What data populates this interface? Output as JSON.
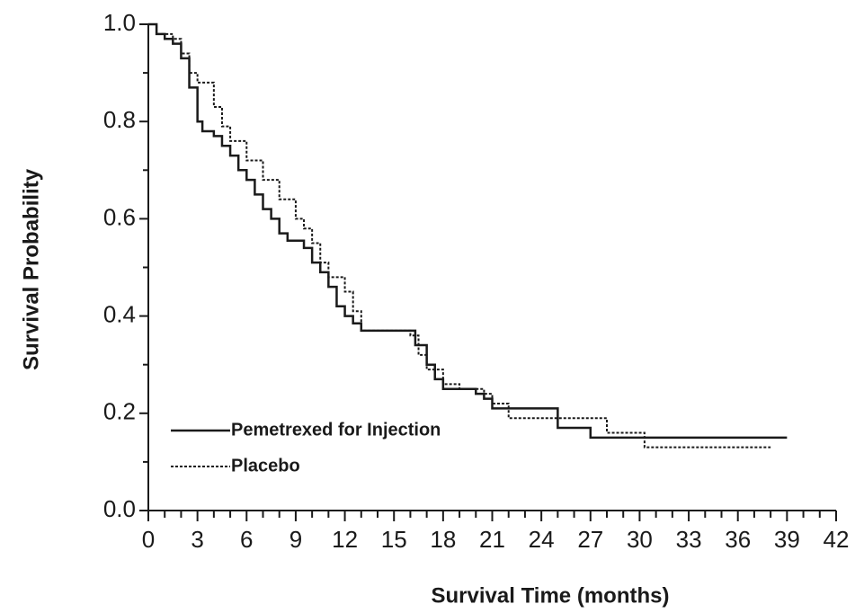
{
  "chart_data": {
    "type": "step",
    "x_label": "Survival Time (months)",
    "y_label": "Survival Probability",
    "xlim": [
      0,
      42
    ],
    "ylim": [
      0,
      1
    ],
    "xticks": [
      0,
      3,
      6,
      9,
      12,
      15,
      18,
      21,
      24,
      27,
      30,
      33,
      36,
      39,
      42
    ],
    "yticks": [
      {
        "value": 0,
        "label": "0.0"
      },
      0.2,
      0.4,
      0.6,
      0.8,
      {
        "value": 1,
        "label": "1.0"
      }
    ],
    "xticks_minor": [
      1,
      2,
      4,
      5,
      7,
      8,
      10,
      11,
      13,
      14,
      16,
      17,
      19,
      20,
      22,
      23,
      25,
      26,
      28,
      29,
      31,
      32,
      34,
      35,
      37,
      38,
      40,
      41
    ],
    "yticks_minor": [
      0.1,
      0.3,
      0.5,
      0.7,
      0.9
    ],
    "series": [
      {
        "name": "Pemetrexed for Injection",
        "color": "#1a1a1a",
        "dash": "solid",
        "x": [
          0,
          0.5,
          1,
          1.5,
          2,
          2.5,
          3,
          3.3,
          4,
          4.5,
          5,
          5.5,
          6,
          6.5,
          7,
          7.5,
          8,
          8.5,
          9.5,
          10,
          10.5,
          11,
          11.5,
          12,
          12.5,
          13,
          16.3,
          17,
          17.5,
          18,
          20,
          20.5,
          21,
          25,
          27,
          39
        ],
        "values": [
          1.0,
          0.98,
          0.97,
          0.96,
          0.93,
          0.87,
          0.8,
          0.78,
          0.77,
          0.75,
          0.73,
          0.7,
          0.68,
          0.65,
          0.62,
          0.6,
          0.57,
          0.555,
          0.54,
          0.51,
          0.49,
          0.46,
          0.42,
          0.4,
          0.385,
          0.37,
          0.34,
          0.3,
          0.27,
          0.25,
          0.24,
          0.23,
          0.21,
          0.17,
          0.15,
          0.15
        ]
      },
      {
        "name": "Placebo",
        "color": "#1a1a1a",
        "dash": "dotted",
        "x": [
          0,
          0.5,
          1.5,
          2,
          2.5,
          3,
          4,
          4.5,
          5,
          6,
          7,
          8,
          9,
          9.5,
          10,
          10.5,
          11,
          12,
          12.5,
          13,
          16,
          16.5,
          17,
          18,
          19,
          20.5,
          21,
          22,
          25,
          28,
          30.3,
          38
        ],
        "values": [
          1.0,
          0.98,
          0.97,
          0.94,
          0.9,
          0.88,
          0.83,
          0.79,
          0.76,
          0.72,
          0.68,
          0.64,
          0.6,
          0.58,
          0.55,
          0.51,
          0.48,
          0.45,
          0.41,
          0.37,
          0.36,
          0.32,
          0.29,
          0.26,
          0.25,
          0.24,
          0.22,
          0.19,
          0.19,
          0.16,
          0.13,
          0.13
        ]
      }
    ]
  }
}
